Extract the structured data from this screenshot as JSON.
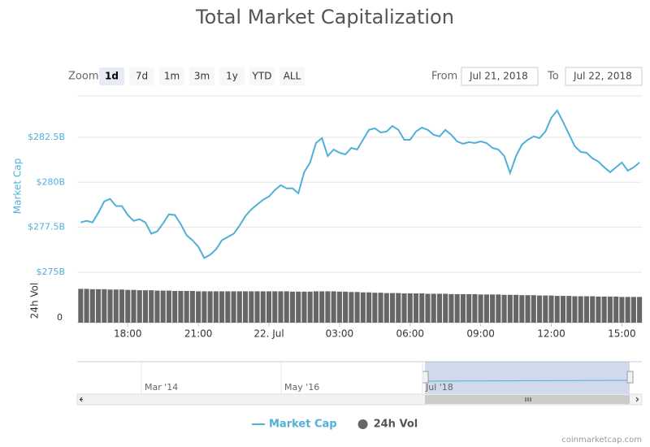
{
  "chart_data": {
    "type": "line",
    "title": "Total Market Capitalization",
    "ylabel": "Market Cap",
    "y2label": "24h Vol",
    "x": [
      16,
      16.25,
      16.5,
      16.75,
      17,
      17.25,
      17.5,
      17.75,
      18,
      18.25,
      18.5,
      18.75,
      19,
      19.25,
      19.5,
      19.75,
      20,
      20.25,
      20.5,
      20.75,
      21,
      21.25,
      21.5,
      21.75,
      22,
      22.25,
      22.5,
      22.75,
      23,
      23.25,
      23.5,
      23.75,
      24,
      24.25,
      24.5,
      24.75,
      25,
      25.25,
      25.5,
      25.75,
      26,
      26.25,
      26.5,
      26.75,
      27,
      27.25,
      27.5,
      27.75,
      28,
      28.25,
      28.5,
      28.75,
      29,
      29.25,
      29.5,
      29.75,
      30,
      30.25,
      30.5,
      30.75,
      31,
      31.25,
      31.5,
      31.75,
      32,
      32.25,
      32.5,
      32.75,
      33,
      33.25,
      33.5,
      33.75,
      34,
      34.25,
      34.5,
      34.75,
      35,
      35.25,
      35.5,
      35.75,
      36,
      36.25,
      36.5,
      36.75,
      37,
      37.25,
      37.5,
      37.75,
      38,
      38.25,
      38.5,
      38.75,
      39,
      39.25,
      39.5,
      39.75
    ],
    "xlim": [
      15.85,
      39.85
    ],
    "xticks": [
      {
        "value": 18,
        "label": "18:00"
      },
      {
        "value": 21,
        "label": "21:00"
      },
      {
        "value": 24,
        "label": "22. Jul"
      },
      {
        "value": 27,
        "label": "03:00"
      },
      {
        "value": 30,
        "label": "06:00"
      },
      {
        "value": 33,
        "label": "09:00"
      },
      {
        "value": 36,
        "label": "12:00"
      },
      {
        "value": 39,
        "label": "15:00"
      }
    ],
    "ylim": [
      275,
      284.8
    ],
    "yticks": [
      {
        "value": 275,
        "label": "$275B"
      },
      {
        "value": 277.5,
        "label": "$277.5B"
      },
      {
        "value": 280,
        "label": "$280B"
      },
      {
        "value": 282.5,
        "label": "$282.5B"
      }
    ],
    "y2lim": [
      0,
      60
    ],
    "y2ticks": [
      0
    ],
    "grid": true,
    "legend": "bottom",
    "series": [
      {
        "name": "Market Cap",
        "type": "line",
        "color": "#4fb0d9",
        "values": [
          277.77,
          277.86,
          277.77,
          278.31,
          278.94,
          279.08,
          278.68,
          278.68,
          278.18,
          277.86,
          277.95,
          277.77,
          277.14,
          277.27,
          277.72,
          278.22,
          278.18,
          277.68,
          277.05,
          276.78,
          276.42,
          275.79,
          275.97,
          276.28,
          276.78,
          276.96,
          277.14,
          277.59,
          278.13,
          278.49,
          278.76,
          279.03,
          279.21,
          279.57,
          279.84,
          279.66,
          279.66,
          279.39,
          280.56,
          281.1,
          282.18,
          282.45,
          281.46,
          281.82,
          281.64,
          281.55,
          281.91,
          281.82,
          282.36,
          282.91,
          283.0,
          282.77,
          282.82,
          283.13,
          282.91,
          282.36,
          282.36,
          282.82,
          283.04,
          282.91,
          282.64,
          282.55,
          282.91,
          282.64,
          282.27,
          282.14,
          282.23,
          282.18,
          282.27,
          282.18,
          281.91,
          281.82,
          281.46,
          280.52,
          281.46,
          282.09,
          282.36,
          282.55,
          282.45,
          282.82,
          283.58,
          283.99,
          283.36,
          282.68,
          282.0,
          281.69,
          281.64,
          281.33,
          281.15,
          280.83,
          280.56,
          280.83,
          281.1,
          280.65,
          280.83,
          281.1
        ]
      },
      {
        "name": "24h Vol",
        "type": "bar",
        "axis": "y2",
        "color": "#666666",
        "values": [
          48,
          48,
          47.5,
          47.5,
          47.5,
          47,
          47,
          47,
          46.5,
          46.5,
          46,
          46,
          46,
          45.5,
          45.5,
          45.5,
          45,
          45,
          45,
          45,
          44.5,
          44.5,
          44.5,
          44.5,
          44.5,
          44.5,
          44.5,
          44.5,
          44.5,
          44.5,
          44.5,
          44.5,
          44.5,
          44.5,
          44.5,
          44.5,
          44,
          44,
          44,
          44,
          44.5,
          44.5,
          44.5,
          44.5,
          44,
          44,
          43.5,
          43.5,
          43,
          43,
          42.5,
          42.5,
          42,
          42,
          42,
          41.5,
          41.5,
          41.5,
          41.5,
          41,
          41,
          41,
          41,
          40.5,
          40.5,
          40.5,
          40.5,
          40.5,
          40,
          40,
          40,
          40,
          39.5,
          39.5,
          39.5,
          39,
          39,
          39,
          38.5,
          38.5,
          38.5,
          38,
          38,
          38,
          37.5,
          37.5,
          37.5,
          37.5,
          37,
          37,
          37,
          37,
          36.5,
          36.5,
          36.5,
          36.5
        ]
      }
    ]
  },
  "range_selector": {
    "zoom_label": "Zoom",
    "buttons": [
      "1d",
      "7d",
      "1m",
      "3m",
      "1y",
      "YTD",
      "ALL"
    ],
    "selected": 0,
    "from_label": "From",
    "from": "Jul 21, 2018",
    "to_label": "To",
    "to": "Jul 22, 2018"
  },
  "navigator": {
    "labels": [
      "Mar '14",
      "May '16",
      "Jul '18"
    ]
  },
  "credit": "coinmarketcap.com"
}
